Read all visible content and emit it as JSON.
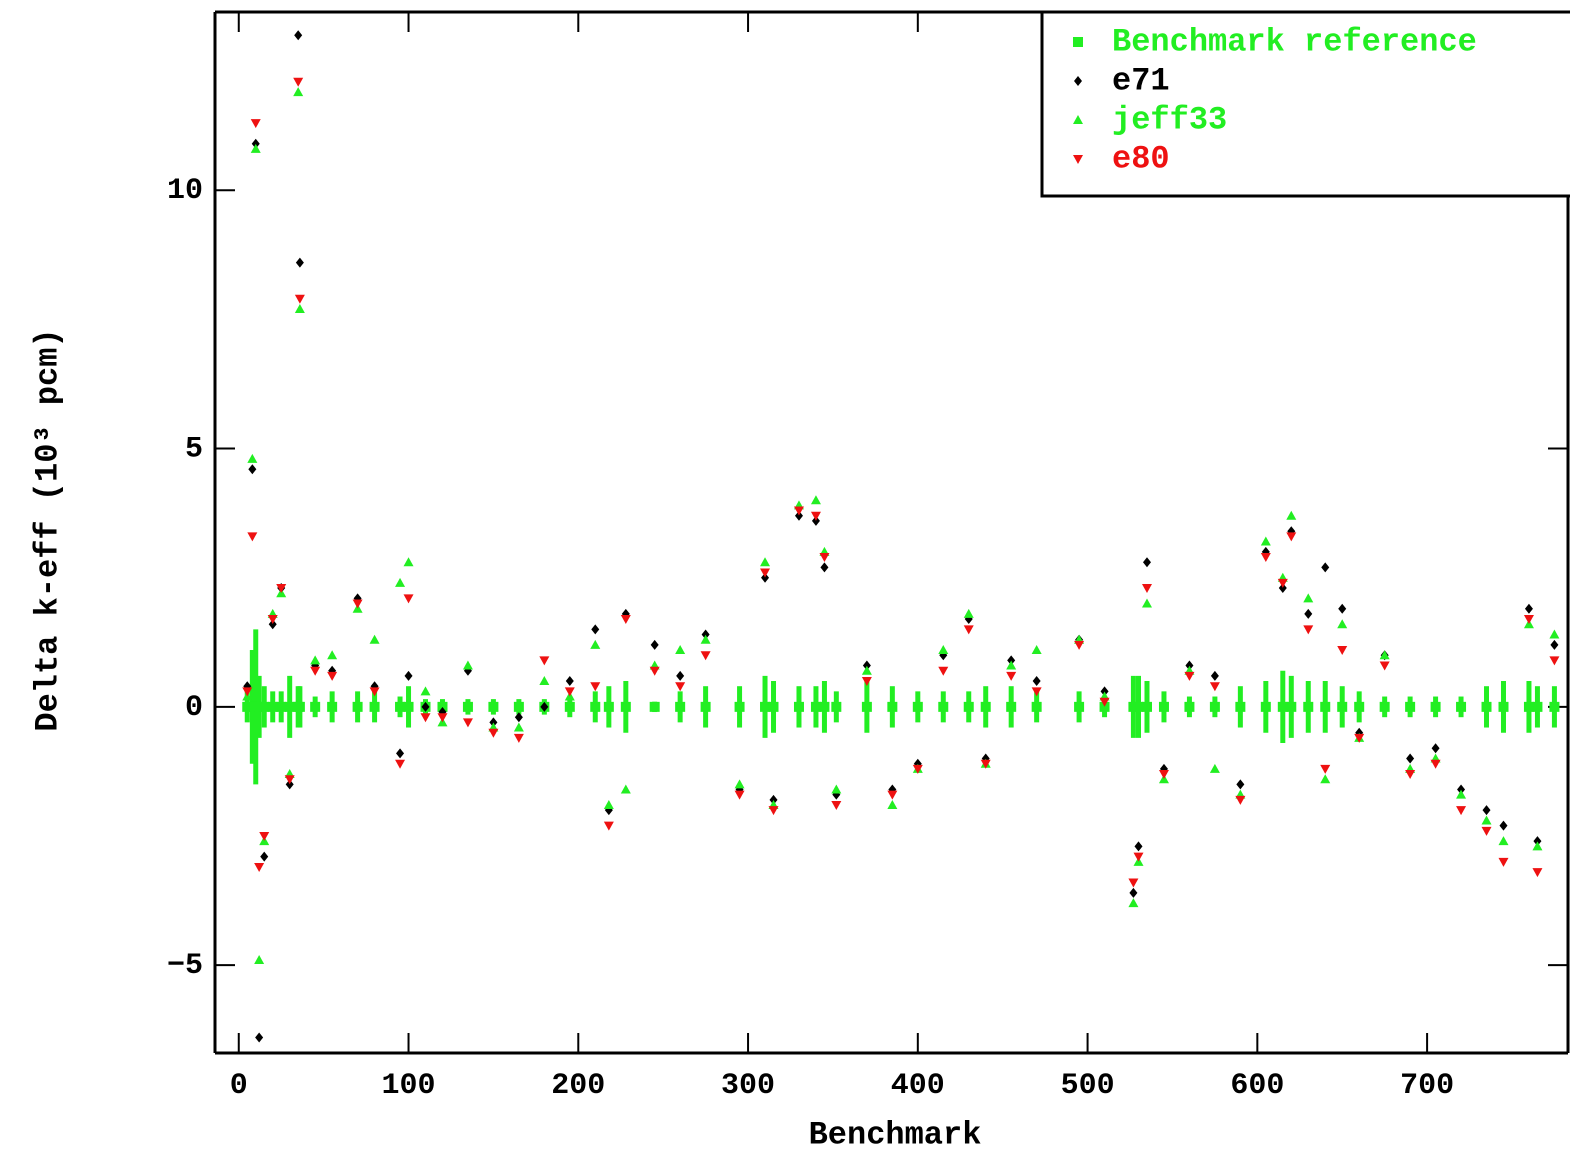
{
  "chart_data": {
    "type": "scatter",
    "x_label": "Benchmark",
    "y_label": "Delta k-eff (10³ pcm)",
    "xlim": [
      -14,
      783
    ],
    "ylim": [
      -6.7,
      13.45
    ],
    "xticks": [
      0,
      100,
      200,
      300,
      400,
      500,
      600,
      700
    ],
    "yticks": [
      {
        "value": -5,
        "label": "−5"
      },
      0,
      5,
      10
    ],
    "legend": "upper right",
    "x": [
      5,
      8,
      10,
      12,
      15,
      20,
      25,
      30,
      35,
      36,
      45,
      55,
      70,
      80,
      95,
      100,
      110,
      120,
      135,
      150,
      165,
      180,
      195,
      210,
      218,
      228,
      245,
      260,
      275,
      295,
      310,
      315,
      330,
      340,
      345,
      352,
      370,
      385,
      400,
      415,
      430,
      440,
      455,
      470,
      495,
      510,
      527,
      530,
      535,
      545,
      560,
      575,
      590,
      605,
      615,
      620,
      630,
      640,
      650,
      660,
      675,
      690,
      705,
      720,
      735,
      745,
      760,
      765,
      775
    ],
    "series": [
      {
        "name": "Benchmark reference",
        "color": "#22ee22",
        "marker": "square",
        "values": [
          0,
          0,
          0,
          0,
          0,
          0,
          0,
          0,
          0,
          0,
          0,
          0,
          0,
          0,
          0,
          0,
          0,
          0,
          0,
          0,
          0,
          0,
          0,
          0,
          0,
          0,
          0,
          0,
          0,
          0,
          0,
          0,
          0,
          0,
          0,
          0,
          0,
          0,
          0,
          0,
          0,
          0,
          0,
          0,
          0,
          0,
          0,
          0,
          0,
          0,
          0,
          0,
          0,
          0,
          0,
          0,
          0,
          0,
          0,
          0,
          0,
          0,
          0,
          0,
          0,
          0,
          0,
          0,
          0
        ],
        "errors": [
          0.3,
          1.1,
          1.5,
          0.6,
          0.4,
          0.3,
          0.3,
          0.6,
          0.4,
          0.4,
          0.2,
          0.3,
          0.3,
          0.3,
          0.2,
          0.4,
          0.15,
          0.15,
          0.15,
          0.15,
          0.15,
          0.15,
          0.2,
          0.3,
          0.4,
          0.5,
          0.1,
          0.3,
          0.4,
          0.4,
          0.6,
          0.5,
          0.4,
          0.4,
          0.5,
          0.3,
          0.5,
          0.4,
          0.3,
          0.3,
          0.3,
          0.4,
          0.4,
          0.3,
          0.3,
          0.2,
          0.6,
          0.6,
          0.5,
          0.3,
          0.2,
          0.2,
          0.4,
          0.5,
          0.7,
          0.6,
          0.5,
          0.5,
          0.4,
          0.3,
          0.2,
          0.2,
          0.2,
          0.2,
          0.4,
          0.5,
          0.5,
          0.4,
          0.4
        ]
      },
      {
        "name": "e71",
        "color": "#000000",
        "marker": "diamond",
        "values": [
          0.4,
          4.6,
          10.9,
          -6.4,
          -2.9,
          1.6,
          2.3,
          -1.5,
          13,
          8.6,
          0.8,
          0.7,
          2.1,
          0.4,
          -0.9,
          0.6,
          0,
          -0.1,
          0.7,
          -0.3,
          -0.2,
          0,
          0.5,
          1.5,
          -2,
          1.8,
          1.2,
          0.6,
          1.4,
          -1.6,
          2.5,
          -1.8,
          3.7,
          3.6,
          2.7,
          -1.7,
          0.8,
          -1.6,
          -1.1,
          1,
          1.7,
          -1,
          0.9,
          0.5,
          1.3,
          0.3,
          -3.6,
          -2.7,
          2.8,
          -1.2,
          0.8,
          0.6,
          -1.5,
          3,
          2.3,
          3.4,
          1.8,
          2.7,
          1.9,
          -0.5,
          1,
          -1,
          -0.8,
          -1.6,
          -2,
          -2.3,
          1.9,
          -2.6,
          1.2
        ]
      },
      {
        "name": "jeff33",
        "color": "#22ee22",
        "marker": "triangle-up",
        "values": [
          0.2,
          4.8,
          10.8,
          -4.9,
          -2.6,
          1.8,
          2.2,
          -1.3,
          11.9,
          7.7,
          0.9,
          1,
          1.9,
          1.3,
          2.4,
          2.8,
          0.3,
          -0.3,
          0.8,
          -0.4,
          -0.4,
          0.5,
          0.2,
          1.2,
          -1.9,
          -1.6,
          0.8,
          1.1,
          1.3,
          -1.5,
          2.8,
          -1.9,
          3.9,
          4,
          3,
          -1.6,
          0.7,
          -1.9,
          -1.2,
          1.1,
          1.8,
          -1.1,
          0.8,
          1.1,
          1.3,
          0.2,
          -3.8,
          -3,
          2,
          -1.4,
          0.7,
          -1.2,
          -1.7,
          3.2,
          2.5,
          3.7,
          2.1,
          -1.4,
          1.6,
          -0.6,
          1,
          -1.2,
          -1,
          -1.7,
          -2.2,
          -2.6,
          1.6,
          -2.7,
          1.4
        ]
      },
      {
        "name": "e80",
        "color": "#ee1111",
        "marker": "triangle-down",
        "values": [
          0.3,
          3.3,
          11.3,
          -3.1,
          -2.5,
          1.7,
          2.3,
          -1.4,
          12.1,
          7.9,
          0.7,
          0.6,
          2,
          0.3,
          -1.1,
          2.1,
          -0.2,
          -0.2,
          -0.3,
          -0.5,
          -0.6,
          0.9,
          0.3,
          0.4,
          -2.3,
          1.7,
          0.7,
          0.4,
          1,
          -1.7,
          2.6,
          -2,
          3.8,
          3.7,
          2.9,
          -1.9,
          0.5,
          -1.7,
          -1.2,
          0.7,
          1.5,
          -1.1,
          0.6,
          0.3,
          1.2,
          0.1,
          -3.4,
          -2.9,
          2.3,
          -1.3,
          0.6,
          0.4,
          -1.8,
          2.9,
          2.4,
          3.3,
          1.5,
          -1.2,
          1.1,
          -0.6,
          0.8,
          -1.3,
          -1.1,
          -2,
          -2.4,
          -3,
          1.7,
          -3.2,
          0.9
        ]
      }
    ]
  }
}
